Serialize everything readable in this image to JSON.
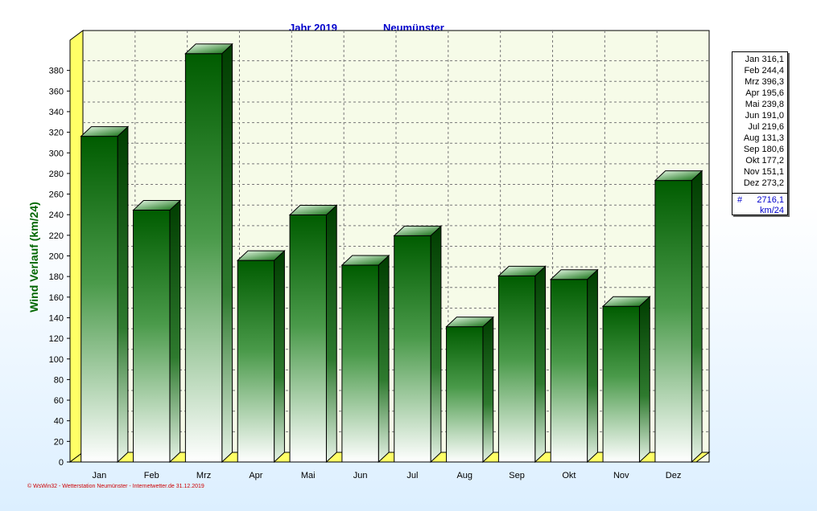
{
  "header": {
    "year_label": "Jahr  2019",
    "station": "Neumünster"
  },
  "chart_data": {
    "type": "bar",
    "title": "Jahr  2019",
    "subtitle": "Neumünster",
    "xlabel": "",
    "ylabel": "Wind Verlauf  (km/24)",
    "categories": [
      "Jan",
      "Feb",
      "Mrz",
      "Apr",
      "Mai",
      "Jun",
      "Jul",
      "Aug",
      "Sep",
      "Okt",
      "Nov",
      "Dez"
    ],
    "values": [
      316.1,
      244.4,
      396.3,
      195.6,
      239.8,
      191.0,
      219.6,
      131.3,
      180.6,
      177.2,
      151.1,
      273.2
    ],
    "ylim": [
      0,
      400
    ],
    "yticks": [
      0,
      20,
      40,
      60,
      80,
      100,
      120,
      140,
      160,
      180,
      200,
      220,
      240,
      260,
      280,
      300,
      320,
      340,
      360,
      380
    ],
    "grid": true,
    "bar_color": "#006400",
    "legend_placement": "right"
  },
  "legend": {
    "rows": [
      "Jan  316,1",
      "Feb  244,4",
      "Mrz  396,3",
      "Apr  195,6",
      "Mai  239,8",
      "Jun  191,0",
      "Jul  219,6",
      "Aug  131,3",
      "Sep  180,6",
      "Okt  177,2",
      "Nov  151,1",
      "Dez  273,2"
    ],
    "total_marker": "#",
    "total": "2716,1",
    "unit": "km/24"
  },
  "footer": "© WsWin32  -  Wetterstation Neumünster  -  Internetwetter.de  31.12.2019"
}
